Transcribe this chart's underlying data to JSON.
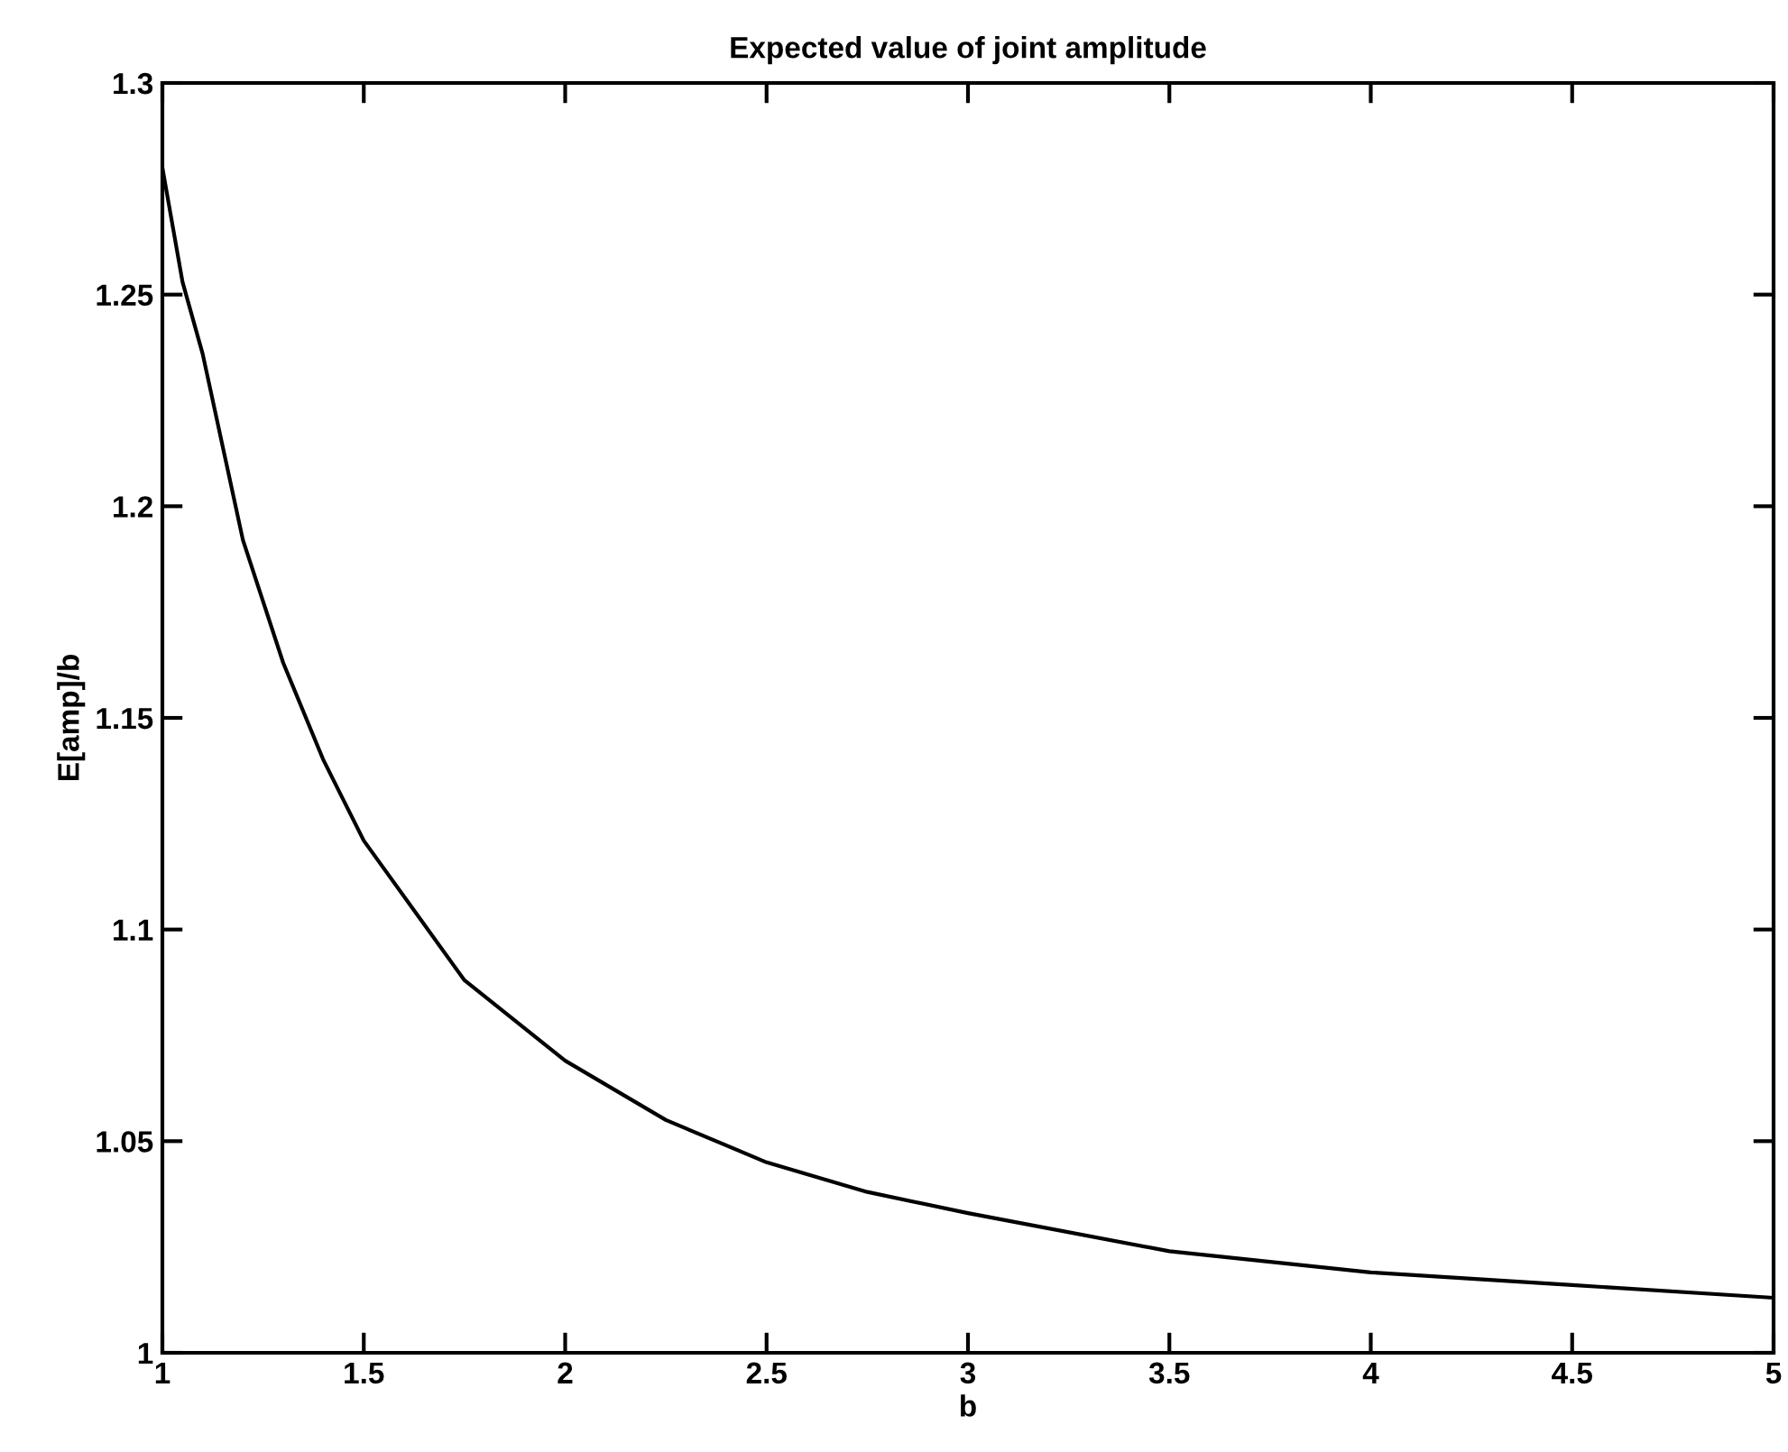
{
  "chart_data": {
    "type": "line",
    "title": "Expected value of joint amplitude",
    "xlabel": "b",
    "ylabel": "E[amp]/b",
    "x": [
      1.0,
      1.05,
      1.1,
      1.2,
      1.3,
      1.4,
      1.5,
      1.75,
      2.0,
      2.25,
      2.5,
      2.75,
      3.0,
      3.5,
      4.0,
      4.5,
      5.0
    ],
    "series": [
      {
        "color": "#000000",
        "values": [
          1.28,
          1.253,
          1.236,
          1.192,
          1.163,
          1.14,
          1.121,
          1.088,
          1.069,
          1.055,
          1.045,
          1.038,
          1.033,
          1.024,
          1.019,
          1.016,
          1.013
        ]
      }
    ],
    "xlim": [
      1,
      5
    ],
    "ylim": [
      1,
      1.3
    ],
    "xticks": [
      1,
      1.5,
      2,
      2.5,
      3,
      3.5,
      4,
      4.5,
      5
    ],
    "yticks": [
      1,
      1.05,
      1.1,
      1.15,
      1.2,
      1.25,
      1.3
    ],
    "grid": false,
    "legend": false,
    "marker": "none",
    "line_style": "solid"
  }
}
